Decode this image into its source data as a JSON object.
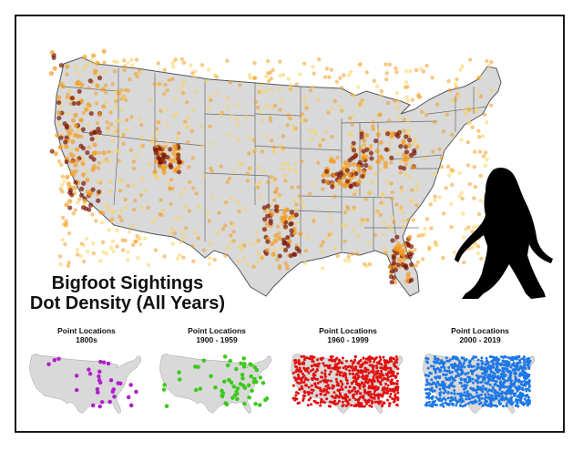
{
  "title": {
    "line1": "Bigfoot Sightings",
    "line2": "Dot Density (All Years)"
  },
  "main_map": {
    "subject": "United States (contiguous) state boundaries",
    "layer": "Bigfoot sighting dot density",
    "colors": {
      "land": "#d9d9d9",
      "border": "#555555",
      "low_density": "#fcd15a",
      "mid_density": "#f29b1f",
      "high_density": "#7a1400"
    },
    "hotspots": [
      "Pacific Northwest (Washington/Oregon)",
      "Northern California",
      "Ohio / Western Pennsylvania",
      "East Texas",
      "Florida",
      "Colorado Front Range"
    ]
  },
  "figure": {
    "type": "silhouette",
    "name": "bigfoot-silhouette",
    "color": "#000000"
  },
  "mini_maps": [
    {
      "title_line1": "Point Locations",
      "title_line2": "1800s",
      "dot_color": "#b020c8"
    },
    {
      "title_line1": "Point Locations",
      "title_line2": "1900 - 1959",
      "dot_color": "#3ec81e"
    },
    {
      "title_line1": "Point Locations",
      "title_line2": "1960 - 1999",
      "dot_color": "#e01010"
    },
    {
      "title_line1": "Point Locations",
      "title_line2": "2000 - 2019",
      "dot_color": "#1e78e6"
    }
  ]
}
